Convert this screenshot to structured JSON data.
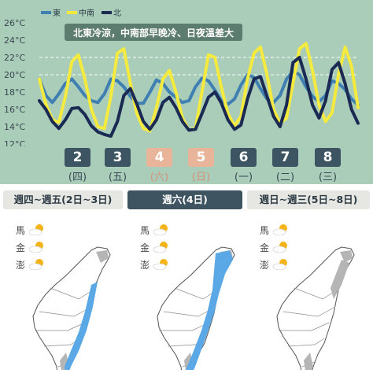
{
  "chart_data": {
    "type": "line",
    "title": "北東冷涼，中南部早晚冷、日夜溫差大",
    "ylim": [
      12,
      26
    ],
    "yticks": [
      "12°C",
      "14°C",
      "16°C",
      "18°C",
      "20°C",
      "22°C",
      "24°C",
      "26°C"
    ],
    "reference_lines": [
      20,
      22
    ],
    "legend": [
      "東",
      "中南",
      "北"
    ],
    "legend_position": "top-left",
    "series": [
      {
        "name": "東",
        "color": "#3f7fb1",
        "values": [
          19.5,
          17.6,
          16.8,
          17.8,
          19.0,
          19.5,
          18.6,
          17.6,
          17.0,
          16.8,
          17.8,
          19.5,
          19.3,
          18.6,
          17.5,
          16.7,
          16.7,
          18.0,
          19.4,
          19.0,
          18.0,
          17.4,
          16.8,
          17.0,
          18.6,
          19.6,
          19.3,
          18.2,
          17.0,
          16.6,
          17.2,
          18.8,
          20.0,
          19.7,
          18.4,
          17.2,
          16.8,
          17.6,
          19.5,
          20.4,
          20.0,
          18.6,
          17.5,
          16.9,
          17.6,
          19.3,
          19.0,
          18.3,
          17.2,
          16.5
        ]
      },
      {
        "name": "中南",
        "color": "#f5ea3e",
        "values": [
          19.5,
          16.6,
          14.8,
          14.5,
          17.5,
          21.5,
          22.3,
          19.5,
          16.0,
          14.0,
          13.8,
          17.5,
          22.5,
          23.0,
          19.0,
          15.5,
          13.8,
          13.5,
          16.2,
          19.5,
          20.5,
          18.0,
          15.0,
          13.6,
          13.8,
          18.0,
          22.3,
          22.0,
          18.5,
          15.5,
          14.1,
          15.2,
          19.5,
          22.5,
          23.2,
          20.0,
          16.0,
          14.4,
          15.0,
          19.0,
          23.0,
          23.6,
          20.5,
          16.5,
          14.6,
          15.6,
          20.0,
          23.2,
          21.0,
          16.2
        ]
      },
      {
        "name": "北",
        "color": "#1b2a52",
        "values": [
          17.0,
          16.0,
          14.6,
          13.8,
          14.8,
          16.1,
          16.2,
          15.4,
          14.1,
          13.4,
          13.1,
          12.9,
          14.6,
          17.6,
          18.4,
          16.6,
          14.6,
          13.7,
          14.8,
          16.8,
          17.4,
          16.2,
          14.6,
          13.6,
          13.7,
          15.5,
          17.4,
          18.0,
          16.7,
          14.8,
          13.7,
          14.2,
          17.2,
          19.5,
          19.8,
          17.5,
          15.2,
          14.0,
          16.5,
          21.4,
          22.0,
          19.5,
          16.5,
          15.0,
          17.0,
          20.6,
          21.4,
          19.0,
          16.0,
          14.4
        ]
      }
    ]
  },
  "days": [
    {
      "date": "2",
      "weekday": "(四)",
      "weekend": false
    },
    {
      "date": "3",
      "weekday": "(五)",
      "weekend": false
    },
    {
      "date": "4",
      "weekday": "(六)",
      "weekend": true
    },
    {
      "date": "5",
      "weekday": "(日)",
      "weekend": true
    },
    {
      "date": "6",
      "weekday": "(一)",
      "weekend": false
    },
    {
      "date": "7",
      "weekday": "(二)",
      "weekend": false
    },
    {
      "date": "8",
      "weekday": "(三)",
      "weekend": false
    }
  ],
  "maps": [
    {
      "header": "週四~週五(2日~3日)",
      "header_style": "light",
      "islands": [
        "馬",
        "金",
        "澎"
      ],
      "icons": [
        "partly-cloudy-icon",
        "partly-cloudy-icon",
        "partly-cloudy-icon"
      ]
    },
    {
      "header": "週六(4日)",
      "header_style": "dark",
      "islands": [
        "馬",
        "金",
        "澎"
      ],
      "icons": [
        "partly-cloudy-icon",
        "partly-cloudy-icon",
        "partly-cloudy-icon"
      ]
    },
    {
      "header": "週日~週三(5日~8日)",
      "header_style": "light",
      "islands": [
        "馬",
        "金",
        "澎"
      ],
      "icons": [
        "partly-cloudy-icon",
        "partly-cloudy-icon",
        "partly-cloudy-icon"
      ]
    }
  ],
  "colors": {
    "rain": "#5aa9e6",
    "cloud": "#b5b5b5",
    "background": "#a9cdb9"
  }
}
